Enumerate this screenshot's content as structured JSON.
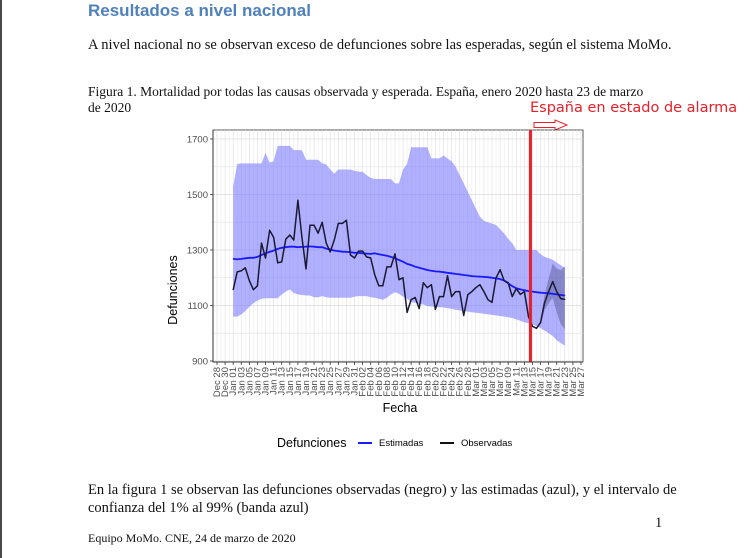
{
  "document": {
    "heading": "Resultados a nivel nacional",
    "intro": "A nivel nacional no se observan exceso de defunciones sobre las esperadas, según el sistema MoMo.",
    "figure_caption": "Figura 1. Mortalidad por todas las causas observada y esperada. España, enero 2020 hasta 23 de marzo de 2020",
    "annotation": "España en estado de alarma",
    "explanation": "En la figura 1 se observan las defunciones observadas (negro) y las estimadas (azul), y el intervalo de confianza del 1% al 99% (banda azul)",
    "page_number": "1",
    "footer": "Equipo MoMo. CNE, 24 de marzo de 2020"
  },
  "colors": {
    "heading": "#4f81bd",
    "annotation": "#e8202a",
    "band": "#8080ff",
    "estimated": "#1a1aff",
    "observed": "#1a1a33"
  },
  "chart_data": {
    "type": "line",
    "xlabel": "Fecha",
    "ylabel": "Defunciones",
    "ylim": [
      900,
      1700
    ],
    "yticks": [
      900,
      1100,
      1300,
      1500,
      1700
    ],
    "grid": true,
    "legend": {
      "title": "Defunciones",
      "position": "bottom",
      "entries": [
        "Estimadas",
        "Observadas"
      ]
    },
    "x_start_label": "Dec 28",
    "xticks": [
      "Dec 28",
      "Dec 30",
      "Jan 01",
      "Jan 03",
      "Jan 05",
      "Jan 07",
      "Jan 09",
      "Jan 11",
      "Jan 13",
      "Jan 15",
      "Jan 17",
      "Jan 19",
      "Jan 21",
      "Jan 23",
      "Jan 25",
      "Jan 27",
      "Jan 29",
      "Jan 31",
      "Feb 02",
      "Feb 04",
      "Feb 06",
      "Feb 08",
      "Feb 10",
      "Feb 12",
      "Feb 14",
      "Feb 16",
      "Feb 18",
      "Feb 20",
      "Feb 22",
      "Feb 24",
      "Feb 26",
      "Feb 28",
      "Mar 01",
      "Mar 03",
      "Mar 05",
      "Mar 07",
      "Mar 09",
      "Mar 11",
      "Mar 13",
      "Mar 15",
      "Mar 17",
      "Mar 19",
      "Mar 21",
      "Mar 23",
      "Mar 25",
      "Mar 27"
    ],
    "xticks_day_offset": [
      0,
      2,
      4,
      6,
      8,
      10,
      12,
      14,
      16,
      18,
      20,
      22,
      24,
      26,
      28,
      30,
      32,
      34,
      36,
      38,
      40,
      42,
      44,
      46,
      48,
      50,
      52,
      54,
      56,
      58,
      60,
      62,
      64,
      66,
      68,
      70,
      72,
      74,
      76,
      78,
      80,
      82,
      84,
      86,
      88,
      90
    ],
    "x_range_days": [
      0,
      90
    ],
    "data_start_day": 4,
    "vline": {
      "label": "España en estado de alarma",
      "day": 77.5
    },
    "series": [
      {
        "name": "Observadas",
        "values": [
          1157,
          1221,
          1225,
          1236,
          1189,
          1157,
          1171,
          1325,
          1271,
          1371,
          1346,
          1254,
          1257,
          1339,
          1354,
          1336,
          1479,
          1346,
          1232,
          1389,
          1389,
          1361,
          1400,
          1325,
          1293,
          1336,
          1396,
          1396,
          1407,
          1282,
          1271,
          1296,
          1296,
          1275,
          1271,
          1211,
          1171,
          1171,
          1239,
          1239,
          1286,
          1193,
          1200,
          1075,
          1121,
          1129,
          1089,
          1182,
          1164,
          1175,
          1086,
          1132,
          1132,
          1207,
          1132,
          1150,
          1150,
          1064,
          1139,
          1150,
          1164,
          1175,
          1150,
          1121,
          1111,
          1200,
          1229,
          1189,
          1182,
          1132,
          1161,
          1140,
          1150,
          1061,
          1025,
          1018,
          1039,
          1110,
          1150,
          1186,
          1150,
          1125,
          1122
        ]
      },
      {
        "name": "Estimadas",
        "values": [
          1268,
          1266,
          1268,
          1270,
          1272,
          1272,
          1275,
          1282,
          1288,
          1293,
          1298,
          1304,
          1308,
          1310,
          1312,
          1312,
          1310,
          1311,
          1312,
          1313,
          1312,
          1310,
          1310,
          1305,
          1302,
          1298,
          1296,
          1294,
          1293,
          1292,
          1290,
          1290,
          1288,
          1287,
          1286,
          1288,
          1285,
          1282,
          1279,
          1275,
          1270,
          1264,
          1258,
          1250,
          1246,
          1240,
          1236,
          1232,
          1228,
          1225,
          1223,
          1222,
          1220,
          1218,
          1216,
          1214,
          1212,
          1210,
          1208,
          1206,
          1205,
          1204,
          1203,
          1202,
          1200,
          1198,
          1195,
          1190,
          1180,
          1170,
          1162,
          1158,
          1155,
          1152,
          1150,
          1148,
          1146,
          1145,
          1144,
          1142,
          1140,
          1138,
          1136
        ]
      },
      {
        "name": "IC 1%-99% inferior",
        "values": [
          1060,
          1060,
          1068,
          1080,
          1095,
          1108,
          1118,
          1124,
          1126,
          1126,
          1126,
          1126,
          1140,
          1150,
          1158,
          1145,
          1140,
          1138,
          1136,
          1136,
          1130,
          1130,
          1134,
          1130,
          1128,
          1128,
          1128,
          1128,
          1128,
          1128,
          1132,
          1134,
          1134,
          1134,
          1130,
          1128,
          1124,
          1120,
          1128,
          1140,
          1148,
          1142,
          1132,
          1125,
          1112,
          1110,
          1105,
          1104,
          1098,
          1096,
          1095,
          1094,
          1093,
          1090,
          1088,
          1085,
          1082,
          1080,
          1078,
          1076,
          1074,
          1072,
          1070,
          1068,
          1066,
          1064,
          1062,
          1060,
          1058,
          1055,
          1050,
          1045,
          1040,
          1036,
          1032,
          1025,
          1018,
          1010,
          1000,
          990,
          975,
          965,
          955
        ]
      },
      {
        "name": "IC 1%-99% superior",
        "values": [
          1530,
          1610,
          1612,
          1612,
          1612,
          1612,
          1612,
          1612,
          1650,
          1615,
          1620,
          1675,
          1675,
          1675,
          1675,
          1660,
          1660,
          1660,
          1625,
          1625,
          1625,
          1625,
          1612,
          1608,
          1590,
          1575,
          1590,
          1590,
          1590,
          1590,
          1585,
          1582,
          1582,
          1570,
          1560,
          1556,
          1556,
          1556,
          1556,
          1556,
          1540,
          1540,
          1590,
          1610,
          1670,
          1670,
          1670,
          1670,
          1670,
          1630,
          1630,
          1630,
          1640,
          1630,
          1620,
          1600,
          1570,
          1540,
          1510,
          1480,
          1450,
          1420,
          1405,
          1400,
          1395,
          1390,
          1375,
          1360,
          1340,
          1325,
          1300,
          1300,
          1300,
          1300,
          1300,
          1300,
          1285,
          1275,
          1270,
          1265,
          1255,
          1245,
          1235
        ]
      }
    ]
  }
}
